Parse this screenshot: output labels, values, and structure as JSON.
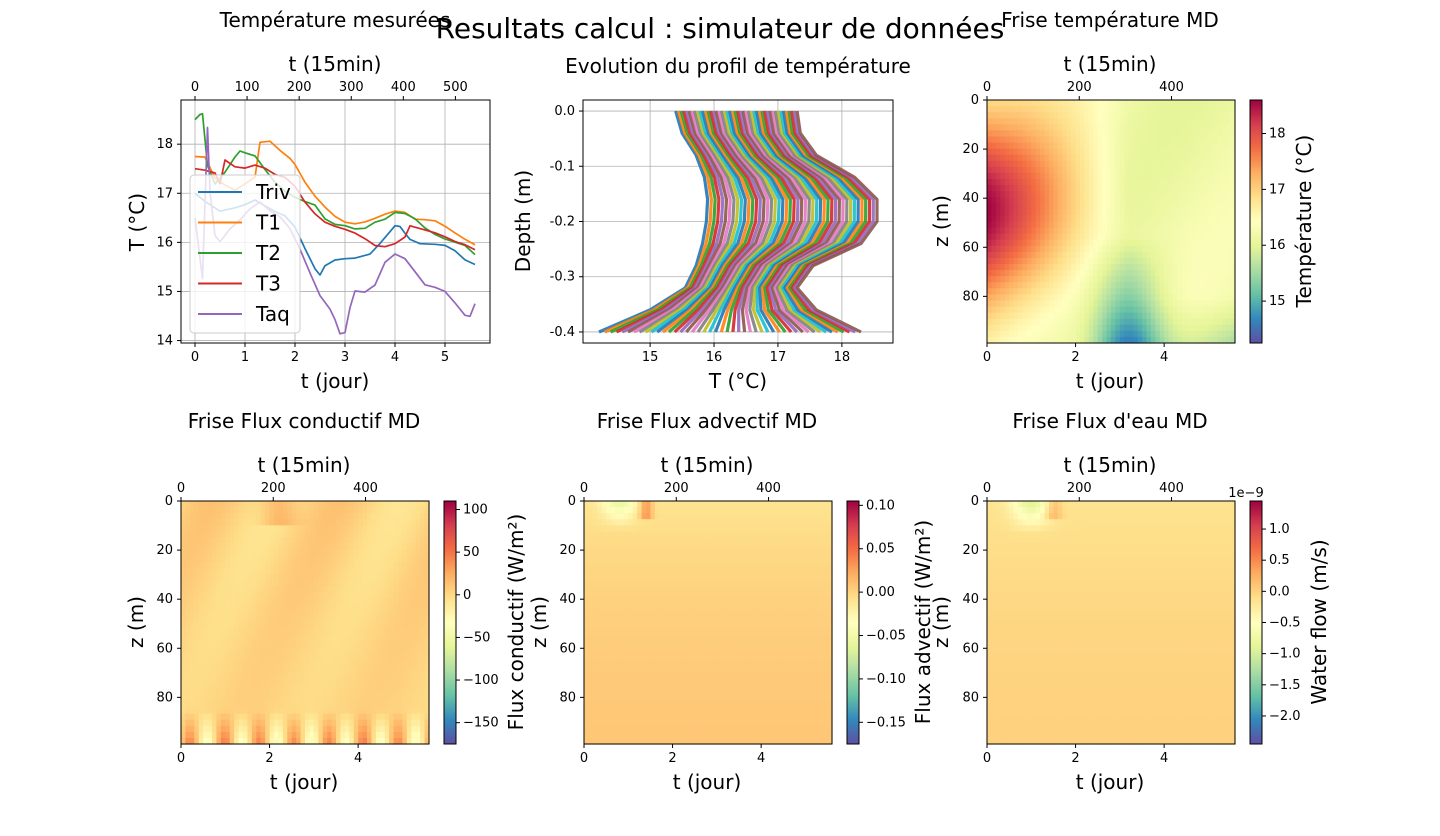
{
  "figure": {
    "suptitle": "Resultats calcul : simulateur de données"
  },
  "chart_data": [
    {
      "type": "line",
      "title": "Température mesurées",
      "xlabel": "t (jour)",
      "ylabel": "T (°C)",
      "top_xlabel": "t (15min)",
      "xlim": [
        -0.28,
        5.9
      ],
      "ylim": [
        13.95,
        18.9
      ],
      "xticks": [
        0,
        1,
        2,
        3,
        4,
        5
      ],
      "yticks": [
        14,
        15,
        16,
        17,
        18
      ],
      "top_xticks": [
        0,
        100,
        200,
        300,
        400,
        500
      ],
      "top_scale": 96,
      "grid": true,
      "legend": "center-left",
      "series": [
        {
          "name": "Triv",
          "color": "#1f77b4",
          "x": [
            0,
            0.2,
            0.5,
            0.8,
            1.0,
            1.2,
            1.4,
            1.6,
            1.8,
            2.0,
            2.2,
            2.4,
            2.5,
            2.6,
            2.8,
            3.0,
            3.2,
            3.5,
            3.7,
            3.9,
            4.0,
            4.1,
            4.2,
            4.3,
            4.5,
            4.8,
            5.0,
            5.2,
            5.4,
            5.6
          ],
          "y": [
            17.0,
            16.8,
            16.6,
            16.7,
            16.8,
            16.9,
            16.75,
            16.6,
            16.5,
            16.3,
            15.9,
            15.5,
            15.35,
            15.5,
            15.6,
            15.65,
            15.7,
            15.8,
            16.0,
            16.2,
            16.3,
            16.3,
            16.2,
            16.1,
            16.0,
            15.95,
            15.9,
            15.8,
            15.65,
            15.55
          ]
        },
        {
          "name": "T1",
          "color": "#ff7f0e",
          "x": [
            0,
            0.2,
            0.4,
            0.6,
            0.8,
            1.0,
            1.2,
            1.3,
            1.5,
            1.7,
            1.9,
            2.0,
            2.2,
            2.4,
            2.6,
            2.8,
            3.0,
            3.2,
            3.4,
            3.6,
            3.8,
            4.0,
            4.2,
            4.4,
            4.6,
            4.8,
            5.0,
            5.2,
            5.4,
            5.6
          ],
          "y": [
            17.75,
            17.7,
            17.3,
            17.2,
            17.1,
            17.2,
            17.3,
            18.0,
            18.05,
            17.9,
            17.75,
            17.6,
            17.2,
            16.9,
            16.7,
            16.55,
            16.45,
            16.4,
            16.4,
            16.45,
            16.55,
            16.65,
            16.65,
            16.5,
            16.45,
            16.4,
            16.3,
            16.2,
            16.1,
            15.95
          ]
        },
        {
          "name": "T2",
          "color": "#2ca02c",
          "x": [
            0,
            0.1,
            0.15,
            0.25,
            0.4,
            0.6,
            0.8,
            0.9,
            1.0,
            1.2,
            1.4,
            1.6,
            1.8,
            2.0,
            2.2,
            2.4,
            2.6,
            2.8,
            3.0,
            3.2,
            3.4,
            3.6,
            3.8,
            4.0,
            4.2,
            4.4,
            4.6,
            4.8,
            5.0,
            5.2,
            5.4,
            5.6
          ],
          "y": [
            18.5,
            18.6,
            18.65,
            17.6,
            17.2,
            17.4,
            17.7,
            17.85,
            17.85,
            17.8,
            17.5,
            17.2,
            17.0,
            16.9,
            16.85,
            16.8,
            16.5,
            16.35,
            16.3,
            16.25,
            16.3,
            16.45,
            16.5,
            16.6,
            16.55,
            16.45,
            16.3,
            16.2,
            16.1,
            16.0,
            15.9,
            15.75
          ]
        },
        {
          "name": "T3",
          "color": "#d62728",
          "x": [
            0,
            0.2,
            0.4,
            0.5,
            0.6,
            0.8,
            1.0,
            1.2,
            1.4,
            1.6,
            1.8,
            2.0,
            2.2,
            2.4,
            2.6,
            2.8,
            3.0,
            3.2,
            3.4,
            3.6,
            3.8,
            4.0,
            4.2,
            4.3,
            4.5,
            4.8,
            5.0,
            5.2,
            5.4,
            5.6
          ],
          "y": [
            17.5,
            17.5,
            17.45,
            17.2,
            17.65,
            17.5,
            17.5,
            17.6,
            17.55,
            17.4,
            17.3,
            17.1,
            16.8,
            16.6,
            16.45,
            16.35,
            16.25,
            16.15,
            16.05,
            15.95,
            15.95,
            16.0,
            16.1,
            16.3,
            16.25,
            16.2,
            16.15,
            16.05,
            15.95,
            15.85
          ]
        },
        {
          "name": "Taq",
          "color": "#9467bd",
          "x": [
            0,
            0.15,
            0.25,
            0.3,
            0.4,
            0.5,
            0.7,
            0.9,
            1.1,
            1.3,
            1.5,
            1.7,
            1.9,
            2.1,
            2.3,
            2.5,
            2.7,
            2.8,
            2.9,
            3.0,
            3.1,
            3.2,
            3.4,
            3.6,
            3.8,
            4.0,
            4.2,
            4.4,
            4.6,
            4.8,
            5.0,
            5.2,
            5.4,
            5.5,
            5.6
          ],
          "y": [
            16.5,
            15.3,
            18.35,
            17.0,
            16.1,
            16.0,
            16.3,
            16.5,
            16.7,
            16.8,
            16.6,
            16.5,
            16.3,
            15.9,
            15.4,
            14.9,
            14.6,
            14.4,
            14.15,
            14.2,
            14.7,
            15.0,
            14.95,
            15.1,
            15.6,
            15.8,
            15.7,
            15.4,
            15.1,
            15.05,
            15.0,
            14.8,
            14.55,
            14.5,
            14.75
          ]
        }
      ]
    },
    {
      "type": "line",
      "title": "Evolution du profil de température",
      "xlabel": "T (°C)",
      "ylabel": "Depth (m)",
      "xlim": [
        13.95,
        18.8
      ],
      "ylim": [
        -0.42,
        0.02
      ],
      "xticks": [
        15,
        16,
        17,
        18
      ],
      "yticks": [
        0.0,
        -0.1,
        -0.2,
        -0.3,
        -0.4
      ],
      "grid": true,
      "profile_count": 540,
      "envelope": {
        "depth": [
          0,
          -0.04,
          -0.08,
          -0.12,
          -0.16,
          -0.2,
          -0.24,
          -0.28,
          -0.32,
          -0.36,
          -0.4
        ],
        "left": [
          15.4,
          15.5,
          15.72,
          15.85,
          15.9,
          15.88,
          15.82,
          15.72,
          15.55,
          15.0,
          14.2
        ],
        "right": [
          17.3,
          17.35,
          17.6,
          18.2,
          18.55,
          18.55,
          18.3,
          17.55,
          17.3,
          17.6,
          18.3
        ]
      }
    },
    {
      "type": "heatmap",
      "title": "Frise température MD",
      "xlabel": "t (jour)",
      "ylabel": "z (m)",
      "top_xlabel": "t (15min)",
      "xlim": [
        0,
        5.6
      ],
      "ylim": [
        99,
        0
      ],
      "xticks": [
        0,
        2,
        4
      ],
      "yticks": [
        0,
        20,
        40,
        60,
        80
      ],
      "top_xticks": [
        0,
        200,
        400
      ],
      "top_scale": 96,
      "colorbar": {
        "label": "Température (°C)",
        "range": [
          14.25,
          18.6
        ],
        "ticks": [
          "15",
          "16",
          "17",
          "18"
        ],
        "tick_values": [
          15,
          16,
          17,
          18
        ],
        "exponent": ""
      },
      "field": "temperature"
    },
    {
      "type": "heatmap",
      "title": "Frise Flux conductif MD",
      "xlabel": "t (jour)",
      "ylabel": "z (m)",
      "top_xlabel": "t (15min)",
      "xlim": [
        0,
        5.6
      ],
      "ylim": [
        99,
        0
      ],
      "xticks": [
        0,
        2,
        4
      ],
      "yticks": [
        0,
        20,
        40,
        60,
        80
      ],
      "top_xticks": [
        0,
        200,
        400
      ],
      "top_scale": 96,
      "colorbar": {
        "label": "Flux conductif (W/m²)",
        "range": [
          -175,
          110
        ],
        "ticks": [
          "100",
          "50",
          "0",
          "−50",
          "−100",
          "−150"
        ],
        "tick_values": [
          100,
          50,
          0,
          -50,
          -100,
          -150
        ],
        "exponent": ""
      },
      "field": "conductive"
    },
    {
      "type": "heatmap",
      "title": "Frise Flux advectif MD",
      "xlabel": "t (jour)",
      "ylabel": "z (m)",
      "top_xlabel": "t (15min)",
      "xlim": [
        0,
        5.6
      ],
      "ylim": [
        99,
        0
      ],
      "xticks": [
        0,
        2,
        4
      ],
      "yticks": [
        0,
        20,
        40,
        60,
        80
      ],
      "top_xticks": [
        0,
        200,
        400
      ],
      "top_scale": 96,
      "colorbar": {
        "label": "Flux advectif (W/m²)",
        "range": [
          -0.175,
          0.105
        ],
        "ticks": [
          "0.10",
          "0.05",
          "0.00",
          "−0.05",
          "−0.10",
          "−0.15"
        ],
        "tick_values": [
          0.1,
          0.05,
          0,
          -0.05,
          -0.1,
          -0.15
        ],
        "exponent": ""
      },
      "field": "advective"
    },
    {
      "type": "heatmap",
      "title": "Frise Flux d'eau MD",
      "xlabel": "t (jour)",
      "ylabel": "z (m)",
      "top_xlabel": "t (15min)",
      "xlim": [
        0,
        5.6
      ],
      "ylim": [
        99,
        0
      ],
      "xticks": [
        0,
        2,
        4
      ],
      "yticks": [
        0,
        20,
        40,
        60,
        80
      ],
      "top_xticks": [
        0,
        200,
        400
      ],
      "top_scale": 96,
      "colorbar": {
        "label": "Water flow (m/s)",
        "range": [
          -2.45,
          1.45
        ],
        "ticks": [
          "1.0",
          "0.5",
          "0.0",
          "−0.5",
          "−1.0",
          "−1.5",
          "−2.0"
        ],
        "tick_values": [
          1.0,
          0.5,
          0,
          -0.5,
          -1.0,
          -1.5,
          -2.0
        ],
        "exponent": "1e−9"
      },
      "field": "waterflow"
    }
  ]
}
